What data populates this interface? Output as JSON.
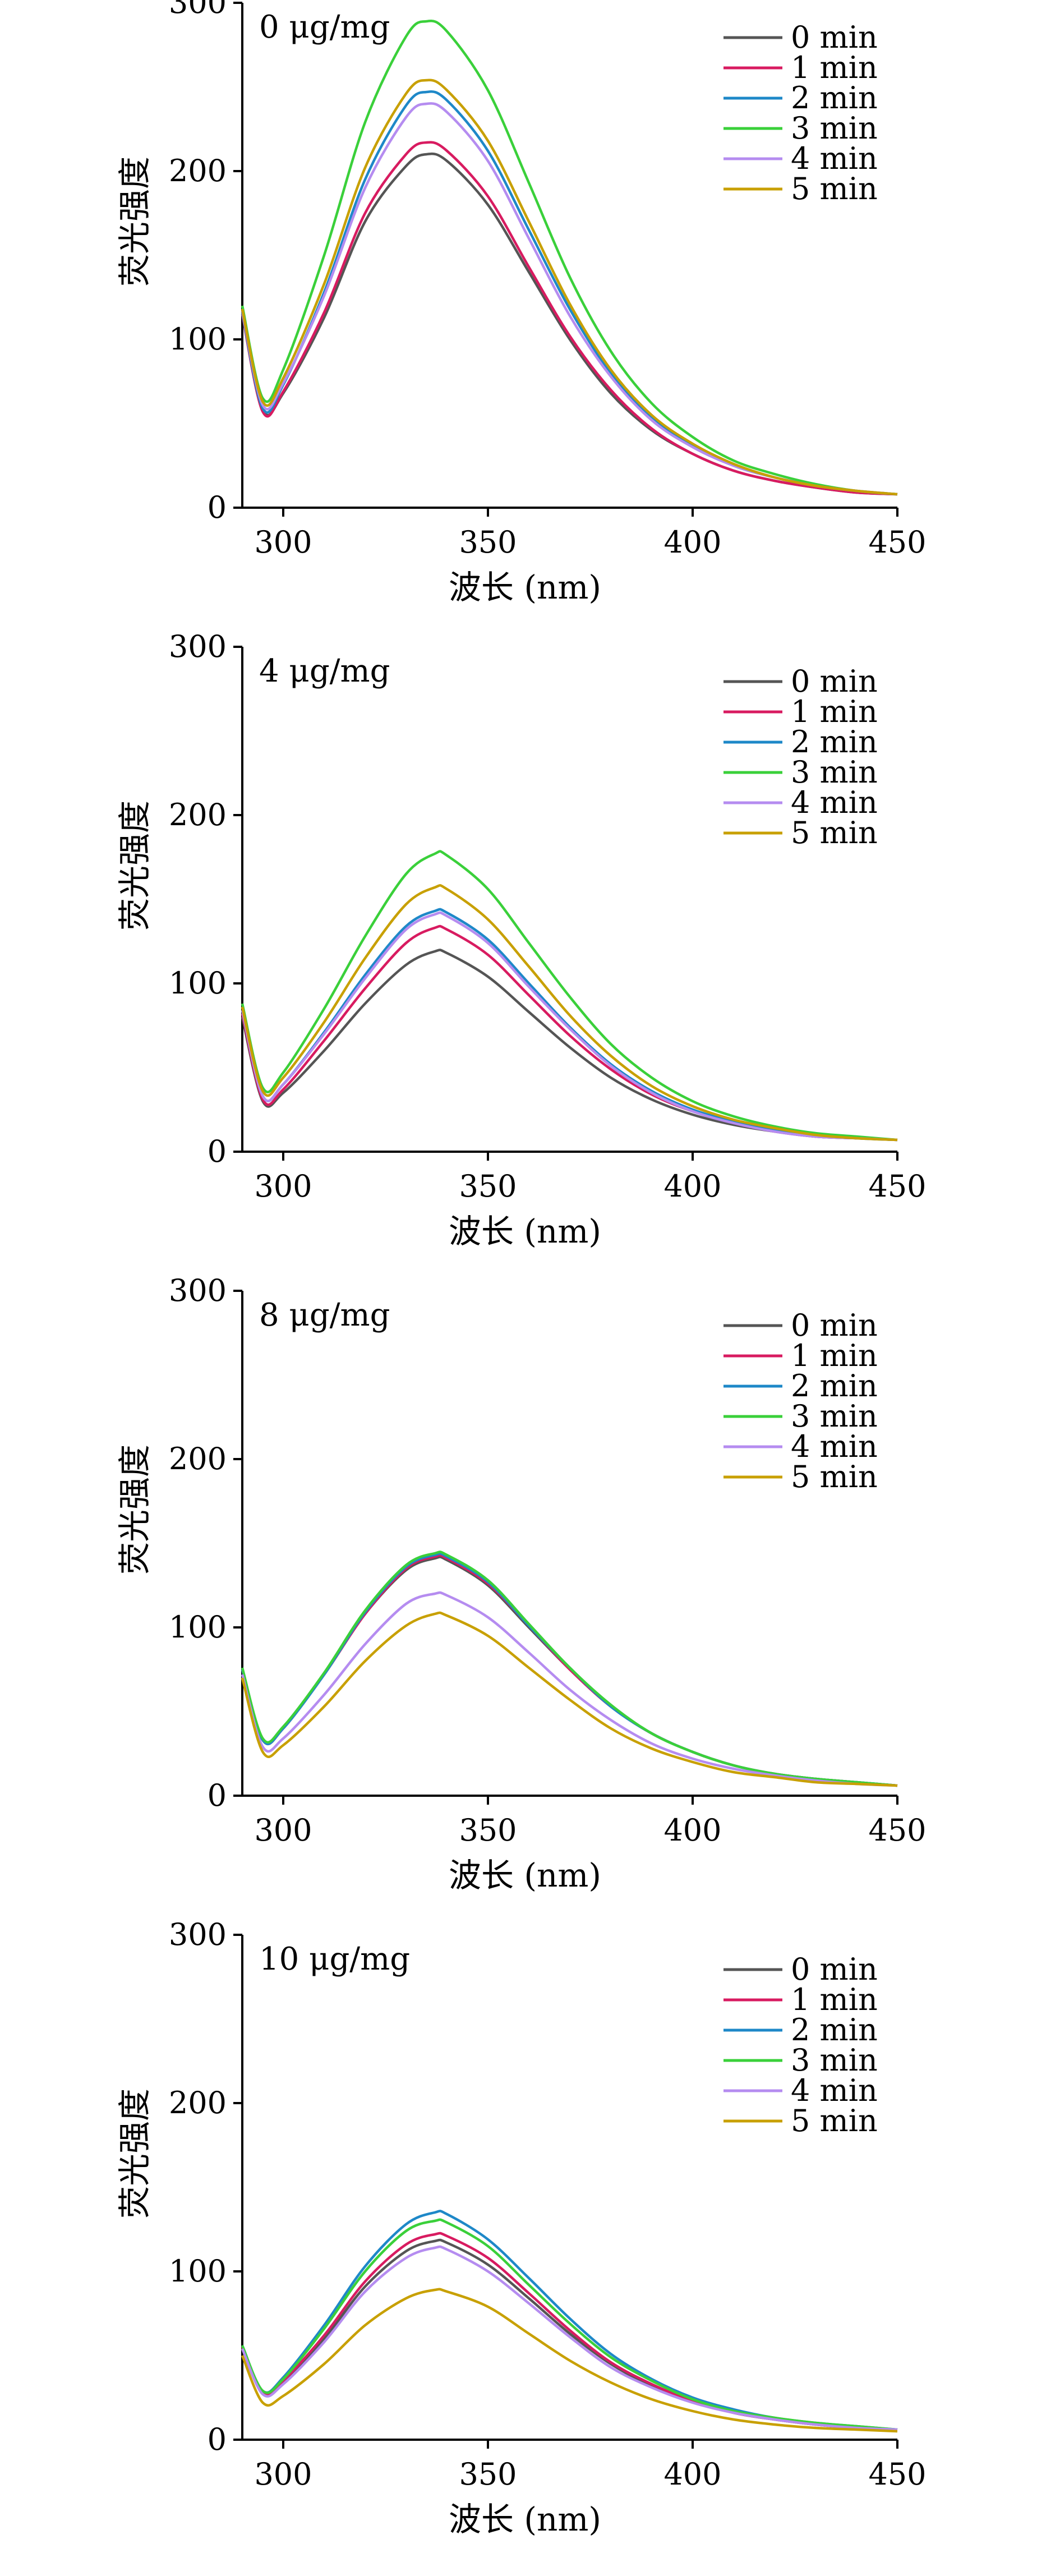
{
  "colors": {
    "0 min": "#555555",
    "1 min": "#d81b60",
    "2 min": "#1e88c8",
    "3 min": "#3ad03a",
    "4 min": "#b58cf0",
    "5 min": "#c8a000"
  },
  "chart_data": [
    {
      "type": "line",
      "title": "0 μg/mg",
      "xlabel": "波长 (nm)",
      "ylabel": "荧光强度",
      "xlim": [
        290,
        450
      ],
      "ylim": [
        0,
        300
      ],
      "x_ticks": [
        300,
        350,
        400,
        450
      ],
      "y_ticks": [
        0,
        100,
        200,
        300
      ],
      "legend_position": "top-right",
      "x": [
        290,
        295,
        300,
        310,
        320,
        330,
        335,
        340,
        350,
        360,
        370,
        380,
        390,
        400,
        410,
        420,
        430,
        440,
        450
      ],
      "series": [
        {
          "name": "0 min",
          "values": [
            115,
            58,
            68,
            113,
            170,
            203,
            210,
            206,
            180,
            140,
            100,
            68,
            46,
            32,
            22,
            16,
            12,
            9,
            8
          ]
        },
        {
          "name": "1 min",
          "values": [
            115,
            57,
            69,
            116,
            175,
            210,
            217,
            212,
            185,
            143,
            102,
            70,
            47,
            32,
            22,
            16,
            12,
            9,
            8
          ]
        },
        {
          "name": "2 min",
          "values": [
            116,
            59,
            73,
            128,
            195,
            239,
            247,
            242,
            212,
            165,
            118,
            80,
            54,
            37,
            25,
            18,
            13,
            10,
            8
          ]
        },
        {
          "name": "3 min",
          "values": [
            120,
            65,
            82,
            150,
            229,
            280,
            289,
            283,
            248,
            193,
            137,
            93,
            62,
            42,
            28,
            20,
            14,
            10,
            8
          ]
        },
        {
          "name": "4 min",
          "values": [
            117,
            61,
            74,
            126,
            190,
            232,
            240,
            235,
            206,
            160,
            114,
            78,
            52,
            36,
            25,
            18,
            13,
            10,
            8
          ]
        },
        {
          "name": "5 min",
          "values": [
            118,
            63,
            77,
            133,
            202,
            246,
            254,
            248,
            218,
            170,
            121,
            82,
            55,
            38,
            26,
            18,
            13,
            10,
            8
          ]
        }
      ]
    },
    {
      "type": "line",
      "title": "4 μg/mg",
      "xlabel": "波长 (nm)",
      "ylabel": "荧光强度",
      "xlim": [
        290,
        450
      ],
      "ylim": [
        0,
        300
      ],
      "x_ticks": [
        300,
        350,
        400,
        450
      ],
      "y_ticks": [
        0,
        100,
        200,
        300
      ],
      "legend_position": "top-right",
      "x": [
        290,
        295,
        300,
        310,
        320,
        330,
        337,
        340,
        350,
        360,
        370,
        380,
        390,
        400,
        410,
        420,
        430,
        440,
        450
      ],
      "series": [
        {
          "name": "0 min",
          "values": [
            80,
            30,
            35,
            60,
            88,
            111,
            119,
            118,
            104,
            83,
            62,
            44,
            31,
            22,
            16,
            12,
            9,
            8,
            7
          ]
        },
        {
          "name": "1 min",
          "values": [
            82,
            31,
            37,
            66,
            97,
            124,
            133,
            132,
            117,
            93,
            69,
            49,
            34,
            24,
            17,
            12,
            9,
            8,
            7
          ]
        },
        {
          "name": "2 min",
          "values": [
            84,
            33,
            40,
            71,
            105,
            134,
            143,
            142,
            126,
            100,
            74,
            52,
            36,
            25,
            18,
            13,
            10,
            8,
            7
          ]
        },
        {
          "name": "3 min",
          "values": [
            88,
            38,
            47,
            85,
            128,
            165,
            177,
            176,
            156,
            124,
            92,
            64,
            44,
            30,
            21,
            15,
            11,
            9,
            7
          ]
        },
        {
          "name": "4 min",
          "values": [
            84,
            33,
            40,
            70,
            103,
            132,
            141,
            140,
            124,
            98,
            73,
            51,
            35,
            24,
            17,
            12,
            9,
            8,
            7
          ]
        },
        {
          "name": "5 min",
          "values": [
            86,
            36,
            44,
            77,
            115,
            147,
            157,
            156,
            138,
            110,
            81,
            57,
            39,
            27,
            19,
            14,
            10,
            8,
            7
          ]
        }
      ]
    },
    {
      "type": "line",
      "title": "8 μg/mg",
      "xlabel": "波长 (nm)",
      "ylabel": "荧光强度",
      "xlim": [
        290,
        450
      ],
      "ylim": [
        0,
        300
      ],
      "x_ticks": [
        300,
        350,
        400,
        450
      ],
      "y_ticks": [
        0,
        100,
        200,
        300
      ],
      "legend_position": "top-right",
      "x": [
        290,
        295,
        300,
        310,
        320,
        330,
        337,
        340,
        350,
        360,
        370,
        380,
        390,
        400,
        410,
        420,
        430,
        440,
        450
      ],
      "series": [
        {
          "name": "0 min",
          "values": [
            75,
            33,
            40,
            72,
            108,
            134,
            141,
            140,
            125,
            100,
            75,
            53,
            37,
            26,
            18,
            13,
            10,
            8,
            6
          ]
        },
        {
          "name": "1 min",
          "values": [
            75,
            33,
            40,
            72,
            108,
            135,
            142,
            141,
            126,
            101,
            75,
            53,
            37,
            26,
            18,
            13,
            10,
            8,
            6
          ]
        },
        {
          "name": "2 min",
          "values": [
            75,
            33,
            40,
            72,
            109,
            136,
            143,
            142,
            127,
            101,
            76,
            53,
            37,
            26,
            18,
            13,
            10,
            8,
            6
          ]
        },
        {
          "name": "3 min",
          "values": [
            76,
            34,
            41,
            73,
            110,
            137,
            144,
            143,
            128,
            102,
            76,
            54,
            37,
            26,
            18,
            13,
            10,
            8,
            6
          ]
        },
        {
          "name": "4 min",
          "values": [
            72,
            29,
            34,
            60,
            90,
            114,
            120,
            119,
            106,
            85,
            63,
            45,
            31,
            22,
            16,
            12,
            9,
            7,
            6
          ]
        },
        {
          "name": "5 min",
          "values": [
            70,
            26,
            30,
            53,
            80,
            101,
            108,
            107,
            95,
            76,
            57,
            40,
            28,
            20,
            14,
            11,
            8,
            7,
            6
          ]
        }
      ]
    },
    {
      "type": "line",
      "title": "10 μg/mg",
      "xlabel": "波长 (nm)",
      "ylabel": "荧光强度",
      "xlim": [
        290,
        450
      ],
      "ylim": [
        0,
        300
      ],
      "x_ticks": [
        300,
        350,
        400,
        450
      ],
      "y_ticks": [
        0,
        100,
        200,
        300
      ],
      "legend_position": "top-right",
      "x": [
        290,
        295,
        300,
        310,
        320,
        330,
        337,
        340,
        350,
        360,
        370,
        380,
        390,
        400,
        410,
        420,
        430,
        440,
        450
      ],
      "series": [
        {
          "name": "0 min",
          "values": [
            55,
            28,
            34,
            60,
            91,
            112,
            118,
            117,
            104,
            84,
            63,
            45,
            32,
            23,
            16,
            12,
            9,
            7,
            6
          ]
        },
        {
          "name": "1 min",
          "values": [
            55,
            28,
            35,
            62,
            94,
            116,
            122,
            121,
            108,
            87,
            65,
            46,
            33,
            23,
            16,
            12,
            9,
            7,
            6
          ]
        },
        {
          "name": "2 min",
          "values": [
            56,
            29,
            37,
            68,
            103,
            128,
            135,
            134,
            119,
            96,
            72,
            51,
            36,
            25,
            18,
            13,
            10,
            8,
            6
          ]
        },
        {
          "name": "3 min",
          "values": [
            56,
            29,
            36,
            66,
            100,
            124,
            130,
            129,
            115,
            92,
            69,
            49,
            35,
            24,
            17,
            13,
            10,
            8,
            6
          ]
        },
        {
          "name": "4 min",
          "values": [
            54,
            27,
            33,
            58,
            88,
            108,
            114,
            113,
            100,
            81,
            61,
            43,
            31,
            22,
            16,
            12,
            9,
            7,
            6
          ]
        },
        {
          "name": "5 min",
          "values": [
            50,
            22,
            26,
            45,
            68,
            84,
            89,
            88,
            79,
            63,
            47,
            34,
            24,
            17,
            12,
            9,
            7,
            6,
            5
          ]
        }
      ]
    }
  ]
}
